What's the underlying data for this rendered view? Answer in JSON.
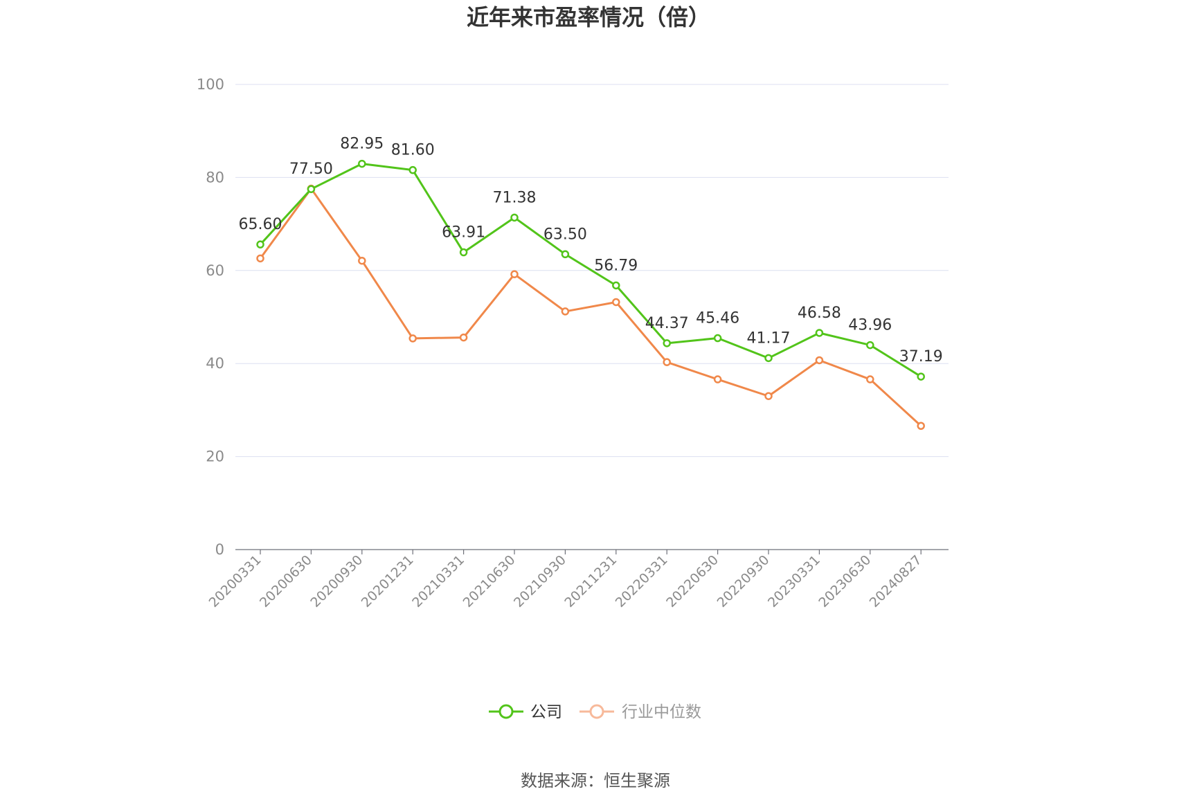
{
  "chart_data": {
    "type": "line",
    "title": "近年来市盈率情况（倍）",
    "categories": [
      "20200331",
      "20200630",
      "20200930",
      "20201231",
      "20210331",
      "20210630",
      "20210930",
      "20211231",
      "20220331",
      "20220630",
      "20220930",
      "20230331",
      "20230630",
      "20240827"
    ],
    "series": [
      {
        "name": "公司",
        "color": "#52c41a",
        "values": [
          65.6,
          77.5,
          82.95,
          81.6,
          63.91,
          71.38,
          63.5,
          56.79,
          44.37,
          45.46,
          41.17,
          46.58,
          43.96,
          37.19
        ],
        "labels": [
          "65.60",
          "77.50",
          "82.95",
          "81.60",
          "63.91",
          "71.38",
          "63.50",
          "56.79",
          "44.37",
          "45.46",
          "41.17",
          "46.58",
          "43.96",
          "37.19"
        ]
      },
      {
        "name": "行业中位数",
        "color": "#f0884a",
        "legend_color": "#f7b99a",
        "values": [
          62.6,
          77.6,
          62.1,
          45.4,
          45.6,
          59.2,
          51.2,
          53.2,
          40.3,
          36.6,
          33.0,
          40.7,
          36.6,
          26.6
        ]
      }
    ],
    "ylim": [
      0,
      100
    ],
    "yticks": [
      0,
      20,
      40,
      60,
      80,
      100
    ],
    "ytick_labels": [
      "0",
      "20",
      "40",
      "60",
      "80",
      "100"
    ],
    "grid": true,
    "legend_position": "bottom-center",
    "source": "数据来源：恒生聚源"
  }
}
